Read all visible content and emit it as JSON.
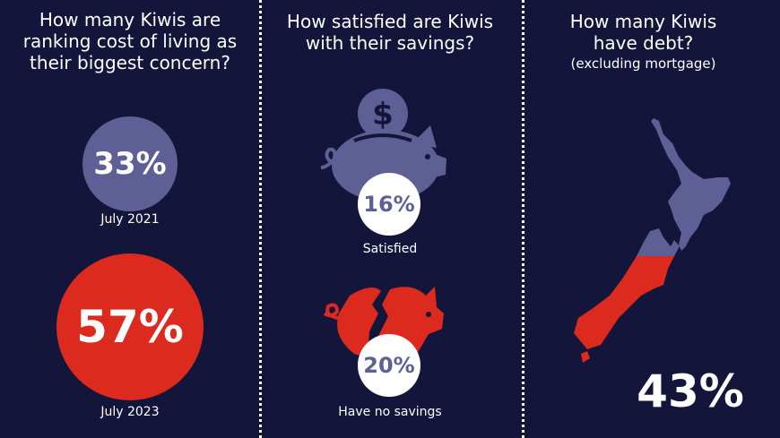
{
  "colors": {
    "background": "#14153a",
    "purple": "#5d5f95",
    "red": "#dd2a1f",
    "white": "#ffffff"
  },
  "cost_of_living": {
    "title": "How many Kiwis are ranking cost of living as their biggest concern?",
    "items": [
      {
        "value": "33%",
        "label": "July 2021"
      },
      {
        "value": "57%",
        "label": "July 2023"
      }
    ]
  },
  "savings": {
    "title": "How satisfied are Kiwis with their savings?",
    "items": [
      {
        "value": "16%",
        "label": "Satisfied",
        "icon": "piggy-bank-coin-icon"
      },
      {
        "value": "20%",
        "label": "Have no savings",
        "icon": "broken-piggy-bank-icon"
      }
    ]
  },
  "debt": {
    "title": "How many Kiwis have debt?",
    "subtitle": "(excluding mortgage)",
    "value": "43%",
    "icon": "new-zealand-map-icon"
  }
}
